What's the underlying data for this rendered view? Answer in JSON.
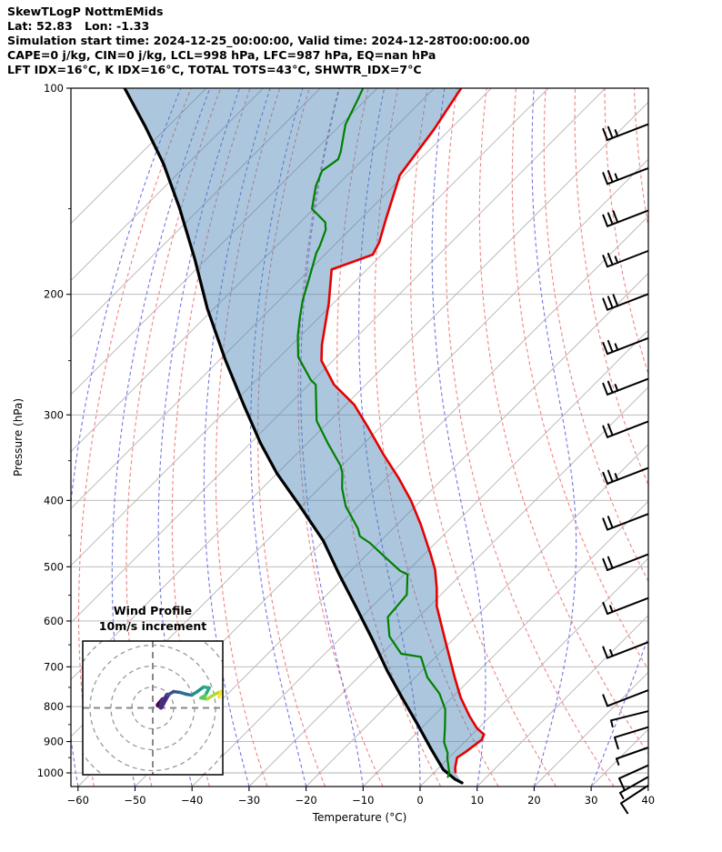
{
  "header": {
    "lines": [
      "SkewTLogP NottmEMids",
      "Lat: 52.83   Lon: -1.33",
      "Simulation start time: 2024-12-25_00:00:00, Valid time: 2024-12-28T00:00:00.00",
      "CAPE=0 j/kg, CIN=0 j/kg, LCL=998 hPa, LFC=987 hPa, EQ=nan hPa",
      "LFT IDX=16°C, K IDX=16°C, TOTAL TOTS=43°C, SHWTR_IDX=7°C"
    ]
  },
  "axes": {
    "xlabel": "Temperature (°C)",
    "ylabel": "Pressure (hPa)",
    "x_ticks": [
      {
        "v": -60,
        "label": "−60"
      },
      {
        "v": -50,
        "label": "−50"
      },
      {
        "v": -40,
        "label": "−40"
      },
      {
        "v": -30,
        "label": "−30"
      },
      {
        "v": -20,
        "label": "−20"
      },
      {
        "v": -10,
        "label": "−10"
      },
      {
        "v": 0,
        "label": "0"
      },
      {
        "v": 10,
        "label": "10"
      },
      {
        "v": 20,
        "label": "20"
      },
      {
        "v": 30,
        "label": "30"
      },
      {
        "v": 40,
        "label": "40"
      }
    ],
    "p_ticks": [
      {
        "v": 100,
        "label": "100"
      },
      {
        "v": 200,
        "label": "200"
      },
      {
        "v": 300,
        "label": "300"
      },
      {
        "v": 400,
        "label": "400"
      },
      {
        "v": 500,
        "label": "500"
      },
      {
        "v": 600,
        "label": "600"
      },
      {
        "v": 700,
        "label": "700"
      },
      {
        "v": 800,
        "label": "800"
      },
      {
        "v": 900,
        "label": "900"
      },
      {
        "v": 1000,
        "label": "1000"
      }
    ],
    "p_minor_ticks": [
      150,
      250,
      350,
      450,
      550,
      650,
      750,
      850,
      950
    ]
  },
  "chart_data": {
    "type": "line",
    "title": "Skew-T Log-P sounding",
    "p_range": [
      100,
      1047
    ],
    "t_range_at_surface": [
      -61,
      40
    ],
    "grid": true,
    "series": [
      {
        "name": "temperature",
        "color": "#e60000",
        "width": 2.6,
        "points": [
          [
            100,
            -115.3
          ],
          [
            115,
            -112.8
          ],
          [
            134,
            -110.8
          ],
          [
            155,
            -105.6
          ],
          [
            168,
            -102.6
          ],
          [
            175,
            -101.6
          ],
          [
            184,
            -106.2
          ],
          [
            206,
            -100.8
          ],
          [
            237,
            -94.7
          ],
          [
            250,
            -92.0
          ],
          [
            271,
            -85.6
          ],
          [
            290,
            -78.5
          ],
          [
            313,
            -72.1
          ],
          [
            343,
            -64.6
          ],
          [
            370,
            -58.1
          ],
          [
            400,
            -51.8
          ],
          [
            434,
            -45.8
          ],
          [
            480,
            -38.8
          ],
          [
            505,
            -35.4
          ],
          [
            537,
            -31.9
          ],
          [
            571,
            -28.7
          ],
          [
            631,
            -22.2
          ],
          [
            725,
            -13.1
          ],
          [
            776,
            -8.5
          ],
          [
            826,
            -3.7
          ],
          [
            860,
            -0.3
          ],
          [
            879,
            2.1
          ],
          [
            895,
            2.6
          ],
          [
            933,
            1.9
          ],
          [
            950,
            1.4
          ],
          [
            984,
            2.9
          ],
          [
            998,
            3.7
          ]
        ]
      },
      {
        "name": "dewpoint",
        "color": "#008000",
        "width": 2.2,
        "points": [
          [
            100,
            -132.5
          ],
          [
            104,
            -131.4
          ],
          [
            113,
            -129.2
          ],
          [
            124,
            -125.2
          ],
          [
            127,
            -124.4
          ],
          [
            132,
            -125.2
          ],
          [
            139,
            -123.6
          ],
          [
            150,
            -120.3
          ],
          [
            157,
            -115.6
          ],
          [
            161,
            -114.2
          ],
          [
            170,
            -112.4
          ],
          [
            174,
            -111.8
          ],
          [
            191,
            -108.3
          ],
          [
            204,
            -105.9
          ],
          [
            217,
            -103.2
          ],
          [
            230,
            -100.5
          ],
          [
            247,
            -96.7
          ],
          [
            267,
            -90.4
          ],
          [
            271,
            -88.8
          ],
          [
            306,
            -82.3
          ],
          [
            330,
            -76.4
          ],
          [
            356,
            -70.2
          ],
          [
            365,
            -68.6
          ],
          [
            384,
            -66.0
          ],
          [
            408,
            -62.2
          ],
          [
            440,
            -56.1
          ],
          [
            451,
            -54.5
          ],
          [
            462,
            -51.4
          ],
          [
            484,
            -46.4
          ],
          [
            507,
            -41.3
          ],
          [
            513,
            -39.4
          ],
          [
            549,
            -36.0
          ],
          [
            592,
            -35.4
          ],
          [
            632,
            -31.7
          ],
          [
            670,
            -26.6
          ],
          [
            677,
            -22.6
          ],
          [
            725,
            -17.9
          ],
          [
            766,
            -12.9
          ],
          [
            808,
            -9.1
          ],
          [
            860,
            -5.9
          ],
          [
            903,
            -3.5
          ],
          [
            936,
            -1.0
          ],
          [
            950,
            -0.3
          ],
          [
            998,
            2.6
          ],
          [
            1014,
            3.2
          ]
        ]
      },
      {
        "name": "parcel-reference",
        "color": "#000000",
        "width": 3.2,
        "points": [
          [
            100,
            -174.3
          ],
          [
            114,
            -163.8
          ],
          [
            129,
            -154.2
          ],
          [
            150,
            -143.5
          ],
          [
            178,
            -131.9
          ],
          [
            210,
            -121.1
          ],
          [
            249,
            -109.1
          ],
          [
            290,
            -97.9
          ],
          [
            330,
            -88.2
          ],
          [
            365,
            -80.1
          ],
          [
            408,
            -70.2
          ],
          [
            458,
            -60.1
          ],
          [
            513,
            -51.4
          ],
          [
            577,
            -42.1
          ],
          [
            639,
            -34.1
          ],
          [
            710,
            -26.0
          ],
          [
            777,
            -18.7
          ],
          [
            851,
            -11.2
          ],
          [
            920,
            -4.9
          ],
          [
            989,
            1.1
          ],
          [
            1022,
            4.9
          ],
          [
            1034,
            6.7
          ]
        ]
      }
    ],
    "shading": {
      "between": [
        "parcel-reference",
        "temperature"
      ],
      "color": "rgba(70,130,180,0.45)"
    },
    "background": {
      "isotherms": {
        "start": -160,
        "end": 40,
        "step": 10,
        "color": "#b3b3b3"
      },
      "dry_adiabats": {
        "theta_start": -60,
        "theta_end": 200,
        "step": 10,
        "color": "#ef8484"
      },
      "moist_adiabats": {
        "t_start": -60,
        "t_end": 40,
        "step": 10,
        "color": "#7376e2"
      },
      "pressure_gridline_color": "#b3b3b3"
    }
  },
  "wind_barbs": {
    "color": "#000000",
    "levels": [
      {
        "p": 113,
        "dx": -44,
        "dy": 17,
        "fulls": 2,
        "halfs": 1,
        "side": "up"
      },
      {
        "p": 131,
        "dx": -44,
        "dy": 17,
        "fulls": 2,
        "halfs": 1,
        "side": "up"
      },
      {
        "p": 151,
        "dx": -44,
        "dy": 17,
        "fulls": 3,
        "halfs": 0,
        "side": "up"
      },
      {
        "p": 173,
        "dx": -44,
        "dy": 17,
        "fulls": 2,
        "halfs": 1,
        "side": "up"
      },
      {
        "p": 200,
        "dx": -44,
        "dy": 17,
        "fulls": 3,
        "halfs": 0,
        "side": "up"
      },
      {
        "p": 232,
        "dx": -44,
        "dy": 17,
        "fulls": 2,
        "halfs": 1,
        "side": "up"
      },
      {
        "p": 266,
        "dx": -44,
        "dy": 17,
        "fulls": 2,
        "halfs": 1,
        "side": "up"
      },
      {
        "p": 307,
        "dx": -44,
        "dy": 17,
        "fulls": 2,
        "halfs": 0,
        "side": "up"
      },
      {
        "p": 359,
        "dx": -44,
        "dy": 17,
        "fulls": 2,
        "halfs": 1,
        "side": "up"
      },
      {
        "p": 419,
        "dx": -44,
        "dy": 17,
        "fulls": 2,
        "halfs": 0,
        "side": "up"
      },
      {
        "p": 480,
        "dx": -44,
        "dy": 17,
        "fulls": 2,
        "halfs": 0,
        "side": "up"
      },
      {
        "p": 556,
        "dx": -44,
        "dy": 17,
        "fulls": 1,
        "halfs": 1,
        "side": "up"
      },
      {
        "p": 645,
        "dx": -44,
        "dy": 17,
        "fulls": 1,
        "halfs": 1,
        "side": "up"
      },
      {
        "p": 758,
        "dx": -44,
        "dy": 17,
        "fulls": 1,
        "halfs": 0,
        "side": "up"
      },
      {
        "p": 813,
        "dx": -40,
        "dy": 10,
        "fulls": 0,
        "halfs": 1,
        "side": "down"
      },
      {
        "p": 858,
        "dx": -36,
        "dy": 11,
        "fulls": 1,
        "halfs": 0,
        "side": "down"
      },
      {
        "p": 919,
        "dx": -34,
        "dy": 12,
        "fulls": 0,
        "halfs": 1,
        "side": "down"
      },
      {
        "p": 976,
        "dx": -31,
        "dy": 14,
        "fulls": 1,
        "halfs": 0,
        "side": "down"
      },
      {
        "p": 1015,
        "dx": -30,
        "dy": 17,
        "fulls": 0,
        "halfs": 1,
        "side": "down"
      },
      {
        "p": 1045,
        "dx": -29,
        "dy": 19,
        "fulls": 1,
        "halfs": 0,
        "side": "down"
      }
    ]
  },
  "hodograph": {
    "title_line1": "Wind Profile",
    "title_line2": "10m/s increment",
    "ring_spacing_ms": 10,
    "rings": [
      10,
      20,
      30,
      40
    ],
    "trace_uv": [
      [
        2.6,
        1.3
      ],
      [
        4.8,
        3.9
      ],
      [
        3.9,
        0.4
      ],
      [
        7.0,
        6.1
      ],
      [
        10.0,
        7.8
      ],
      [
        13.0,
        7.4
      ],
      [
        16.1,
        6.5
      ],
      [
        18.7,
        6.1
      ],
      [
        21.3,
        7.8
      ],
      [
        24.3,
        10.0
      ],
      [
        27.0,
        9.6
      ],
      [
        25.2,
        6.1
      ],
      [
        23.0,
        4.8
      ],
      [
        26.1,
        4.3
      ],
      [
        29.6,
        6.5
      ],
      [
        32.6,
        7.8
      ],
      [
        31.7,
        5.2
      ]
    ],
    "trace_colormap": [
      "#440154",
      "#472c7a",
      "#3b518b",
      "#2c6e8e",
      "#21918c",
      "#27ad81",
      "#5cc863",
      "#aadc32",
      "#fde725"
    ]
  }
}
